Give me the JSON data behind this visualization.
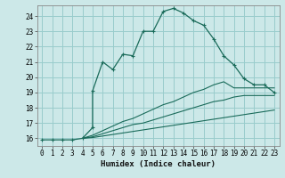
{
  "xlabel": "Humidex (Indice chaleur)",
  "bg_color": "#cce8e8",
  "grid_color": "#99cccc",
  "line_color": "#1a6b5a",
  "xlim": [
    -0.5,
    23.5
  ],
  "ylim": [
    15.5,
    24.7
  ],
  "xticks": [
    0,
    1,
    2,
    3,
    4,
    5,
    6,
    7,
    8,
    9,
    10,
    11,
    12,
    13,
    14,
    15,
    16,
    17,
    18,
    19,
    20,
    21,
    22,
    23
  ],
  "yticks": [
    16,
    17,
    18,
    19,
    20,
    21,
    22,
    23,
    24
  ],
  "line1_x": [
    0,
    1,
    2,
    3,
    4,
    5,
    5,
    6,
    7,
    8,
    9,
    10,
    11,
    12,
    13,
    14,
    15,
    16,
    17,
    18,
    19,
    20,
    21,
    22,
    23
  ],
  "line1_y": [
    15.9,
    15.9,
    15.9,
    15.9,
    16.0,
    16.7,
    19.1,
    21.0,
    20.5,
    21.5,
    21.4,
    23.0,
    23.0,
    24.3,
    24.5,
    24.2,
    23.7,
    23.4,
    22.5,
    21.4,
    20.8,
    19.9,
    19.5,
    19.5,
    19.0
  ],
  "line2_x": [
    4,
    5,
    6,
    7,
    8,
    9,
    10,
    11,
    12,
    13,
    14,
    15,
    16,
    17,
    18,
    19,
    20,
    21,
    22,
    23
  ],
  "line2_y": [
    16.0,
    16.2,
    16.5,
    16.8,
    17.1,
    17.3,
    17.6,
    17.9,
    18.2,
    18.4,
    18.7,
    19.0,
    19.2,
    19.5,
    19.7,
    19.3,
    19.3,
    19.3,
    19.3,
    19.3
  ],
  "line3_x": [
    4,
    5,
    6,
    7,
    8,
    9,
    10,
    11,
    12,
    13,
    14,
    15,
    16,
    17,
    18,
    19,
    20,
    21,
    22,
    23
  ],
  "line3_y": [
    16.0,
    16.1,
    16.3,
    16.5,
    16.7,
    16.9,
    17.0,
    17.2,
    17.4,
    17.6,
    17.8,
    18.0,
    18.2,
    18.4,
    18.5,
    18.7,
    18.8,
    18.8,
    18.8,
    18.8
  ],
  "line4_x": [
    4,
    5,
    6,
    7,
    8,
    9,
    10,
    11,
    12,
    13,
    14,
    15,
    16,
    17,
    18,
    19,
    20,
    21,
    22,
    23
  ],
  "line4_y": [
    16.0,
    16.05,
    16.15,
    16.25,
    16.35,
    16.45,
    16.55,
    16.65,
    16.75,
    16.85,
    16.95,
    17.05,
    17.15,
    17.25,
    17.35,
    17.45,
    17.55,
    17.65,
    17.75,
    17.85
  ],
  "line1_marker_x": [
    0,
    1,
    2,
    3,
    4,
    5,
    6,
    7,
    8,
    9,
    10,
    11,
    12,
    13,
    14,
    15,
    16,
    17,
    18,
    19,
    20,
    21,
    22,
    23
  ],
  "line2_marker_x": [
    4,
    5,
    6,
    9,
    12,
    14,
    16,
    19,
    21,
    22,
    23
  ],
  "line3_marker_x": [
    4,
    5,
    9,
    14,
    19,
    23
  ],
  "line4_marker_x": [
    4,
    5,
    9,
    14,
    19,
    23
  ]
}
